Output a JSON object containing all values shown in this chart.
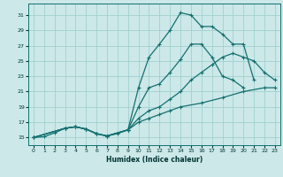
{
  "xlabel": "Humidex (Indice chaleur)",
  "bg_color": "#cce8e8",
  "line_color": "#147070",
  "grid_color": "#99cccc",
  "xlim": [
    -0.5,
    23.5
  ],
  "ylim": [
    14.0,
    32.5
  ],
  "xticks": [
    0,
    1,
    2,
    3,
    4,
    5,
    6,
    7,
    8,
    9,
    10,
    11,
    12,
    13,
    14,
    15,
    16,
    17,
    18,
    19,
    20,
    21,
    22,
    23
  ],
  "yticks": [
    15,
    17,
    19,
    21,
    23,
    25,
    27,
    29,
    31
  ],
  "series": [
    {
      "x": [
        0,
        1,
        2,
        3,
        4,
        5,
        6,
        7,
        8,
        9,
        10,
        11,
        12,
        13,
        14,
        15,
        16,
        17,
        18,
        19,
        20,
        21
      ],
      "y": [
        15,
        15.1,
        15.6,
        16.2,
        16.4,
        16.1,
        15.5,
        15.2,
        15.5,
        16.0,
        21.5,
        25.5,
        27.2,
        29.0,
        31.3,
        31.0,
        29.5,
        29.5,
        28.5,
        27.2,
        27.2,
        22.5
      ]
    },
    {
      "x": [
        0,
        3,
        4,
        5,
        6,
        7,
        9,
        10,
        11,
        12,
        13,
        14,
        15,
        16,
        17,
        18,
        19,
        20
      ],
      "y": [
        15,
        16.2,
        16.4,
        16.1,
        15.5,
        15.2,
        16.0,
        19.0,
        21.5,
        22.0,
        23.5,
        25.2,
        27.2,
        27.2,
        25.5,
        23.0,
        22.5,
        21.5
      ]
    },
    {
      "x": [
        0,
        3,
        4,
        5,
        6,
        7,
        9,
        10,
        11,
        12,
        13,
        14,
        15,
        16,
        17,
        18,
        19,
        20,
        21,
        22,
        23
      ],
      "y": [
        15,
        16.2,
        16.4,
        16.1,
        15.5,
        15.2,
        16.0,
        17.5,
        18.5,
        19.0,
        20.0,
        21.0,
        22.5,
        23.5,
        24.5,
        25.5,
        26.0,
        25.5,
        25.0,
        23.5,
        22.5
      ]
    },
    {
      "x": [
        0,
        3,
        4,
        5,
        6,
        7,
        9,
        10,
        11,
        12,
        13,
        14,
        16,
        18,
        20,
        22,
        23
      ],
      "y": [
        15,
        16.2,
        16.4,
        16.1,
        15.5,
        15.2,
        16.0,
        17.0,
        17.5,
        18.0,
        18.5,
        19.0,
        19.5,
        20.2,
        21.0,
        21.5,
        21.5
      ]
    }
  ]
}
